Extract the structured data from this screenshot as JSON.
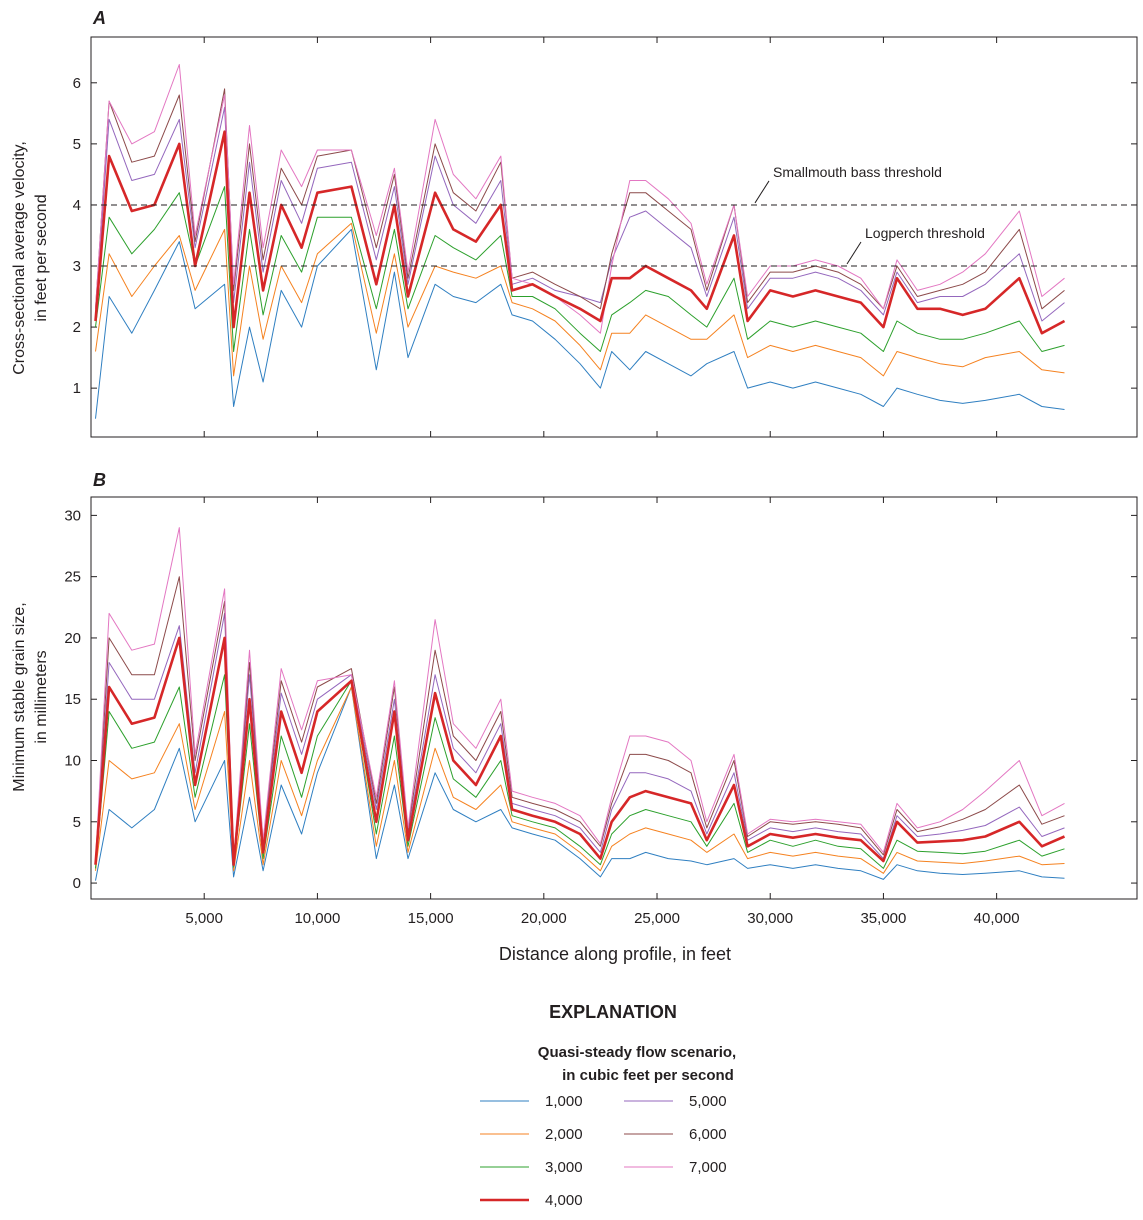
{
  "figure": {
    "xlabel": "Distance along profile, in feet",
    "xticks": [
      5000,
      10000,
      15000,
      20000,
      25000,
      30000,
      35000,
      40000
    ],
    "xtick_labels": [
      "5,000",
      "10,000",
      "15,000",
      "20,000",
      "25,000",
      "30,000",
      "35,000",
      "40,000"
    ]
  },
  "legend": {
    "title": "EXPLANATION",
    "subtitle_line1": "Quasi-steady flow scenario,",
    "subtitle_line2": "in cubic feet per second",
    "items": [
      {
        "label": "1,000",
        "color": "#2f7fc1"
      },
      {
        "label": "2,000",
        "color": "#f58220"
      },
      {
        "label": "3,000",
        "color": "#2ca02c"
      },
      {
        "label": "4,000",
        "color": "#d62728"
      },
      {
        "label": "5,000",
        "color": "#9467bd"
      },
      {
        "label": "6,000",
        "color": "#8c4a4a"
      },
      {
        "label": "7,000",
        "color": "#e377c2"
      }
    ]
  },
  "chart_data": [
    {
      "type": "line",
      "panel": "A",
      "title": "A",
      "ylabel_line1": "Cross-sectional average velocity,",
      "ylabel_line2": "in feet per second",
      "xlim": [
        0,
        46200
      ],
      "ylim": [
        0.2,
        6.75
      ],
      "yticks": [
        1,
        2,
        3,
        4,
        5,
        6
      ],
      "ytick_labels": [
        "1",
        "2",
        "3",
        "4",
        "5",
        "6"
      ],
      "thresholds": [
        {
          "label": "Smallmouth bass threshold",
          "value": 4
        },
        {
          "label": "Logperch threshold",
          "value": 3
        }
      ],
      "x": [
        200,
        800,
        1800,
        2800,
        3900,
        4600,
        5900,
        6300,
        7000,
        7600,
        8400,
        9300,
        10000,
        11500,
        12600,
        13400,
        14000,
        15200,
        16000,
        17000,
        18100,
        18600,
        19500,
        20500,
        21600,
        22500,
        23000,
        23800,
        24500,
        25500,
        26500,
        27200,
        28400,
        29000,
        30000,
        31000,
        32000,
        33000,
        34000,
        35000,
        35600,
        36500,
        37500,
        38500,
        39500,
        41000,
        42000,
        43000
      ],
      "series": [
        {
          "name": "1,000",
          "color": "#2f7fc1",
          "width": 1,
          "values": [
            0.5,
            2.5,
            1.9,
            2.6,
            3.4,
            2.3,
            2.7,
            0.7,
            2.0,
            1.1,
            2.6,
            2.0,
            3.0,
            3.6,
            1.3,
            2.9,
            1.5,
            2.7,
            2.5,
            2.4,
            2.7,
            2.2,
            2.1,
            1.8,
            1.4,
            1.0,
            1.6,
            1.3,
            1.6,
            1.4,
            1.2,
            1.4,
            1.6,
            1.0,
            1.1,
            1.0,
            1.1,
            1.0,
            0.9,
            0.7,
            1.0,
            0.9,
            0.8,
            0.75,
            0.8,
            0.9,
            0.7,
            0.65
          ]
        },
        {
          "name": "2,000",
          "color": "#f58220",
          "width": 1,
          "values": [
            1.6,
            3.2,
            2.5,
            3.0,
            3.5,
            2.6,
            3.6,
            1.2,
            3.0,
            1.8,
            3.0,
            2.4,
            3.2,
            3.7,
            1.9,
            3.2,
            2.0,
            3.0,
            2.9,
            2.8,
            3.0,
            2.4,
            2.3,
            2.1,
            1.7,
            1.3,
            1.9,
            1.9,
            2.2,
            2.0,
            1.8,
            1.8,
            2.2,
            1.5,
            1.7,
            1.6,
            1.7,
            1.6,
            1.5,
            1.2,
            1.6,
            1.5,
            1.4,
            1.35,
            1.5,
            1.6,
            1.3,
            1.25
          ]
        },
        {
          "name": "3,000",
          "color": "#2ca02c",
          "width": 1,
          "values": [
            2.0,
            3.8,
            3.2,
            3.6,
            4.2,
            3.0,
            4.3,
            1.6,
            3.6,
            2.2,
            3.5,
            2.9,
            3.8,
            3.8,
            2.3,
            3.6,
            2.3,
            3.5,
            3.3,
            3.1,
            3.5,
            2.5,
            2.5,
            2.3,
            1.9,
            1.6,
            2.2,
            2.4,
            2.6,
            2.5,
            2.2,
            2.0,
            2.8,
            1.8,
            2.1,
            2.0,
            2.1,
            2.0,
            1.9,
            1.6,
            2.1,
            1.9,
            1.8,
            1.8,
            1.9,
            2.1,
            1.6,
            1.7
          ]
        },
        {
          "name": "4,000",
          "color": "#d62728",
          "width": 2.6,
          "values": [
            2.1,
            4.8,
            3.9,
            4.0,
            5.0,
            3.0,
            5.2,
            2.0,
            4.2,
            2.6,
            4.0,
            3.3,
            4.2,
            4.3,
            2.7,
            4.0,
            2.5,
            4.2,
            3.6,
            3.4,
            4.0,
            2.6,
            2.7,
            2.5,
            2.3,
            2.1,
            2.8,
            2.8,
            3.0,
            2.8,
            2.6,
            2.3,
            3.5,
            2.1,
            2.6,
            2.5,
            2.6,
            2.5,
            2.4,
            2.0,
            2.8,
            2.3,
            2.3,
            2.2,
            2.3,
            2.8,
            1.9,
            2.1
          ]
        },
        {
          "name": "5,000",
          "color": "#9467bd",
          "width": 1,
          "values": [
            2.2,
            5.4,
            4.4,
            4.5,
            5.4,
            3.3,
            5.6,
            2.4,
            4.7,
            2.9,
            4.4,
            3.7,
            4.6,
            4.7,
            3.1,
            4.3,
            2.7,
            4.8,
            4.0,
            3.7,
            4.4,
            2.7,
            2.8,
            2.6,
            2.5,
            2.4,
            3.1,
            3.8,
            3.9,
            3.6,
            3.3,
            2.5,
            3.8,
            2.3,
            2.8,
            2.8,
            2.9,
            2.8,
            2.6,
            2.2,
            2.9,
            2.4,
            2.5,
            2.5,
            2.7,
            3.2,
            2.1,
            2.4
          ]
        },
        {
          "name": "6,000",
          "color": "#8c4a4a",
          "width": 1,
          "values": [
            2.3,
            5.7,
            4.7,
            4.8,
            5.8,
            3.4,
            5.9,
            2.6,
            5.0,
            3.1,
            4.6,
            4.0,
            4.8,
            4.9,
            3.3,
            4.5,
            2.8,
            5.0,
            4.2,
            3.9,
            4.7,
            2.8,
            2.9,
            2.7,
            2.5,
            2.3,
            3.2,
            4.2,
            4.2,
            3.9,
            3.6,
            2.6,
            4.0,
            2.4,
            2.9,
            2.9,
            3.0,
            2.9,
            2.7,
            2.3,
            3.0,
            2.5,
            2.6,
            2.7,
            2.9,
            3.6,
            2.3,
            2.6
          ]
        },
        {
          "name": "7,000",
          "color": "#e377c2",
          "width": 1,
          "values": [
            2.3,
            5.7,
            5.0,
            5.2,
            6.3,
            3.5,
            5.8,
            2.7,
            5.3,
            3.3,
            4.9,
            4.3,
            4.9,
            4.9,
            3.5,
            4.6,
            2.9,
            5.4,
            4.5,
            4.1,
            4.8,
            2.8,
            2.7,
            2.5,
            2.2,
            1.9,
            3.0,
            4.4,
            4.4,
            4.1,
            3.7,
            2.7,
            4.0,
            2.5,
            3.0,
            3.0,
            3.1,
            3.0,
            2.8,
            2.3,
            3.1,
            2.6,
            2.7,
            2.9,
            3.2,
            3.9,
            2.5,
            2.8
          ]
        }
      ]
    },
    {
      "type": "line",
      "panel": "B",
      "title": "B",
      "ylabel_line1": "Minimum stable grain size,",
      "ylabel_line2": "in millimeters",
      "xlim": [
        0,
        46200
      ],
      "ylim": [
        -1.3,
        31.5
      ],
      "yticks": [
        0,
        5,
        10,
        15,
        20,
        25,
        30
      ],
      "ytick_labels": [
        "0",
        "5",
        "10",
        "15",
        "20",
        "25",
        "30"
      ],
      "x": [
        200,
        800,
        1800,
        2800,
        3900,
        4600,
        5900,
        6300,
        7000,
        7600,
        8400,
        9300,
        10000,
        11500,
        12600,
        13400,
        14000,
        15200,
        16000,
        17000,
        18100,
        18600,
        19500,
        20500,
        21600,
        22500,
        23000,
        23800,
        24500,
        25500,
        26500,
        27200,
        28400,
        29000,
        30000,
        31000,
        32000,
        33000,
        34000,
        35000,
        35600,
        36500,
        37500,
        38500,
        39500,
        41000,
        42000,
        43000
      ],
      "series": [
        {
          "name": "1,000",
          "color": "#2f7fc1",
          "width": 1,
          "values": [
            0.2,
            6.0,
            4.5,
            6.0,
            11.0,
            5.0,
            10.0,
            0.5,
            7.0,
            1.0,
            8.0,
            4.0,
            9.0,
            16.0,
            2.0,
            8.0,
            2.0,
            9.0,
            6.0,
            5.0,
            6.0,
            4.5,
            4.0,
            3.5,
            2.0,
            0.5,
            2.0,
            2.0,
            2.5,
            2.0,
            1.8,
            1.5,
            2.0,
            1.2,
            1.5,
            1.2,
            1.5,
            1.2,
            1.0,
            0.3,
            1.5,
            1.0,
            0.8,
            0.7,
            0.8,
            1.0,
            0.5,
            0.4
          ]
        },
        {
          "name": "2,000",
          "color": "#f58220",
          "width": 1,
          "values": [
            1.0,
            10.0,
            8.5,
            9.0,
            13.0,
            6.0,
            14.0,
            1.0,
            10.0,
            1.5,
            10.0,
            5.5,
            10.0,
            16.0,
            3.0,
            10.0,
            2.5,
            11.0,
            7.0,
            6.0,
            8.0,
            5.0,
            4.5,
            4.0,
            2.5,
            1.0,
            3.0,
            4.0,
            4.5,
            4.0,
            3.5,
            2.5,
            4.0,
            2.0,
            2.5,
            2.2,
            2.5,
            2.2,
            2.0,
            0.8,
            2.5,
            1.8,
            1.7,
            1.6,
            1.8,
            2.2,
            1.5,
            1.6
          ]
        },
        {
          "name": "3,000",
          "color": "#2ca02c",
          "width": 1,
          "values": [
            1.2,
            14.0,
            11.0,
            11.5,
            16.0,
            7.0,
            17.0,
            1.3,
            13.0,
            2.0,
            12.0,
            7.0,
            12.0,
            16.5,
            4.0,
            12.0,
            3.0,
            13.5,
            8.5,
            7.0,
            10.0,
            5.5,
            5.0,
            4.5,
            3.0,
            1.5,
            4.0,
            5.5,
            6.0,
            5.5,
            5.0,
            3.0,
            6.5,
            2.5,
            3.5,
            3.0,
            3.5,
            3.0,
            2.8,
            1.2,
            3.5,
            2.6,
            2.5,
            2.4,
            2.6,
            3.5,
            2.2,
            2.8
          ]
        },
        {
          "name": "4,000",
          "color": "#d62728",
          "width": 2.6,
          "values": [
            1.5,
            16.0,
            13.0,
            13.5,
            20.0,
            8.0,
            20.0,
            1.5,
            15.0,
            2.5,
            14.0,
            9.0,
            14.0,
            16.5,
            5.0,
            14.0,
            3.5,
            15.5,
            10.0,
            8.0,
            12.0,
            6.0,
            5.5,
            5.0,
            4.0,
            2.0,
            5.0,
            7.0,
            7.5,
            7.0,
            6.5,
            3.5,
            8.0,
            3.0,
            4.0,
            3.7,
            4.0,
            3.7,
            3.5,
            1.8,
            5.0,
            3.3,
            3.4,
            3.5,
            3.8,
            5.0,
            3.0,
            3.8
          ]
        },
        {
          "name": "5,000",
          "color": "#9467bd",
          "width": 1,
          "values": [
            1.6,
            18.0,
            15.0,
            15.0,
            21.0,
            9.0,
            22.0,
            1.6,
            17.0,
            3.0,
            15.5,
            10.5,
            15.0,
            17.0,
            6.0,
            15.0,
            4.0,
            17.0,
            11.0,
            9.0,
            13.0,
            6.5,
            6.0,
            5.5,
            4.5,
            2.5,
            6.0,
            9.0,
            9.0,
            8.5,
            7.5,
            4.0,
            9.0,
            3.5,
            4.5,
            4.2,
            4.5,
            4.2,
            4.0,
            2.0,
            5.5,
            3.8,
            4.0,
            4.3,
            4.7,
            6.2,
            3.8,
            4.5
          ]
        },
        {
          "name": "6,000",
          "color": "#8c4a4a",
          "width": 1,
          "values": [
            1.7,
            20.0,
            17.0,
            17.0,
            25.0,
            10.0,
            23.0,
            1.7,
            18.0,
            3.3,
            16.5,
            11.5,
            16.0,
            17.5,
            6.5,
            16.0,
            4.3,
            19.0,
            12.0,
            10.0,
            14.0,
            7.0,
            6.5,
            6.0,
            5.0,
            3.0,
            6.5,
            10.5,
            10.5,
            10.0,
            9.0,
            4.5,
            10.0,
            3.8,
            5.0,
            4.8,
            5.0,
            4.8,
            4.5,
            2.3,
            6.0,
            4.2,
            4.6,
            5.2,
            6.0,
            8.0,
            4.8,
            5.5
          ]
        },
        {
          "name": "7,000",
          "color": "#e377c2",
          "width": 1,
          "values": [
            1.8,
            22.0,
            19.0,
            19.5,
            29.0,
            10.5,
            24.0,
            1.8,
            19.0,
            3.5,
            17.5,
            12.5,
            16.5,
            17.0,
            7.0,
            16.5,
            4.5,
            21.5,
            13.0,
            11.0,
            15.0,
            7.5,
            7.0,
            6.5,
            5.5,
            3.2,
            7.0,
            12.0,
            12.0,
            11.5,
            10.0,
            5.0,
            10.5,
            4.0,
            5.2,
            5.0,
            5.2,
            5.0,
            4.8,
            2.5,
            6.5,
            4.5,
            5.0,
            6.0,
            7.5,
            10.0,
            5.5,
            6.5
          ]
        }
      ]
    }
  ]
}
